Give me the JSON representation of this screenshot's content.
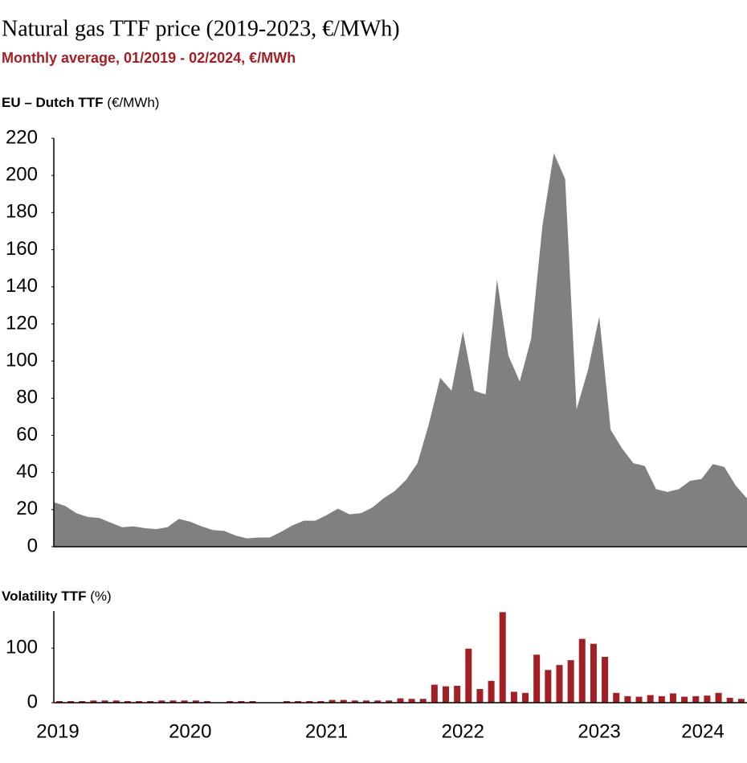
{
  "chart_data": [
    {
      "type": "area",
      "title": "Natural gas TTF price (2019-2023, €/MWh)",
      "subtitle": "Monthly average, 01/2019 - 02/2024, €/MWh",
      "panel_label": "EU – Dutch TTF",
      "unit_label": "(€/MWh)",
      "color": "#808080",
      "categories": [
        "2019",
        null,
        null,
        null,
        null,
        null,
        null,
        null,
        null,
        null,
        null,
        null,
        "2020",
        null,
        null,
        null,
        null,
        null,
        null,
        null,
        null,
        null,
        null,
        null,
        "2021",
        null,
        null,
        null,
        null,
        null,
        null,
        null,
        null,
        null,
        null,
        null,
        "2022",
        null,
        null,
        null,
        null,
        null,
        null,
        null,
        null,
        null,
        null,
        null,
        "2023",
        null,
        null,
        null,
        null,
        null,
        null,
        null,
        null,
        null,
        null,
        null,
        "2024",
        null
      ],
      "values": [
        24,
        22,
        18,
        16,
        15.5,
        13,
        10.5,
        11,
        10,
        9.5,
        10.5,
        15,
        13.5,
        11,
        9,
        8.5,
        6,
        4.5,
        5,
        5,
        8,
        11.5,
        14,
        14,
        17,
        20.5,
        17.5,
        18,
        21,
        26,
        30,
        36,
        45,
        66,
        91,
        84,
        116,
        84,
        82,
        144,
        103,
        89,
        112,
        173,
        212,
        198,
        74,
        95,
        124,
        63,
        53,
        45,
        43.5,
        31,
        29.5,
        31,
        35.5,
        36.5,
        44.5,
        43,
        33,
        26
      ],
      "ylim": [
        0,
        220
      ],
      "yticks": [
        0,
        20,
        40,
        60,
        80,
        100,
        120,
        140,
        160,
        180,
        200,
        220
      ]
    },
    {
      "type": "bar",
      "panel_label": "Volatility TTF",
      "unit_label": "(%)",
      "color": "#a31f24",
      "values": [
        3,
        3,
        3,
        4,
        4,
        4,
        3,
        3,
        3,
        4,
        4,
        4,
        4,
        3,
        0,
        3,
        3,
        3,
        0,
        0,
        3,
        3,
        3,
        3,
        5,
        5,
        4,
        4,
        4,
        4,
        8,
        7,
        7,
        33,
        30,
        31,
        99,
        25,
        40,
        166,
        20,
        18,
        88,
        60,
        69,
        78,
        117,
        108,
        84,
        18,
        12,
        11,
        14,
        12,
        17,
        11,
        12,
        13,
        18,
        9,
        7,
        7
      ],
      "ylim": [
        0,
        168
      ],
      "yticks": [
        0,
        100
      ]
    }
  ]
}
